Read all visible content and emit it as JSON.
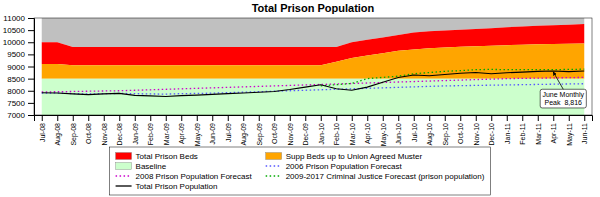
{
  "chart_data": {
    "type": "area",
    "title": "Total Prison Population",
    "categories": [
      "Jul-08",
      "Aug-08",
      "Sep-08",
      "Oct-08",
      "Nov-08",
      "Dec-08",
      "Jan-09",
      "Feb-09",
      "Mar-09",
      "Apr-09",
      "May-09",
      "Jun-09",
      "Jul-09",
      "Aug-09",
      "Sep-09",
      "Oct-09",
      "Nov-09",
      "Dec-09",
      "Jan-10",
      "Feb-10",
      "Mar-10",
      "Apr-10",
      "May-10",
      "Jun-10",
      "Jul-10",
      "Aug-10",
      "Sep-10",
      "Oct-10",
      "Nov-10",
      "Dec-10",
      "Jan-11",
      "Feb-11",
      "Mar-11",
      "Apr-11",
      "May-11",
      "Jun-11"
    ],
    "series": [
      {
        "type": "area",
        "color": "#C0C0C0",
        "values": [
          11000,
          11000,
          11000,
          11000,
          11000,
          11000,
          11000,
          11000,
          11000,
          11000,
          11000,
          11000,
          11000,
          11000,
          11000,
          11000,
          11000,
          11000,
          11000,
          11000,
          11000,
          11000,
          11000,
          11000,
          11000,
          11000,
          11000,
          11000,
          11000,
          11000,
          11000,
          11000,
          11000,
          11000,
          11000,
          11000
        ]
      },
      {
        "name": "Total Prison Beds",
        "type": "area",
        "color": "#FF0000",
        "values": [
          10000,
          10000,
          9800,
          9800,
          9800,
          9800,
          9800,
          9800,
          9800,
          9800,
          9800,
          9800,
          9800,
          9800,
          9800,
          9800,
          9800,
          9800,
          9800,
          9800,
          10000,
          10100,
          10200,
          10300,
          10400,
          10450,
          10480,
          10520,
          10550,
          10580,
          10620,
          10650,
          10680,
          10700,
          10720,
          10750
        ]
      },
      {
        "name": "Supp Beds up to Union Agreed Muster",
        "type": "area",
        "color": "#FFA500",
        "values": [
          9100,
          9100,
          9050,
          9050,
          9050,
          9050,
          9050,
          9050,
          9050,
          9050,
          9050,
          9050,
          9050,
          9050,
          9050,
          9050,
          9050,
          9050,
          9050,
          9200,
          9350,
          9450,
          9550,
          9650,
          9700,
          9750,
          9780,
          9810,
          9840,
          9860,
          9880,
          9900,
          9920,
          9930,
          9940,
          9950
        ]
      },
      {
        "name": "Baseline",
        "type": "area",
        "color": "#CCFFCC",
        "values": [
          8500,
          8500,
          8500,
          8500,
          8500,
          8500,
          8500,
          8500,
          8500,
          8500,
          8500,
          8500,
          8500,
          8500,
          8500,
          8500,
          8500,
          8500,
          8500,
          8500,
          8500,
          8500,
          8500,
          8500,
          8500,
          8500,
          8500,
          8500,
          8500,
          8500,
          8500,
          8500,
          8500,
          8500,
          8500,
          8500
        ]
      },
      {
        "name": "2006 Prison Population Forecast",
        "type": "line",
        "line_style": "dotted",
        "color": "#5555FF",
        "values": [
          7900,
          7910,
          7880,
          7870,
          7880,
          7890,
          7880,
          7870,
          7860,
          7880,
          7890,
          7900,
          7920,
          7940,
          7960,
          7980,
          8000,
          8020,
          8040,
          8060,
          8080,
          8100,
          8120,
          8140,
          8160,
          8180,
          8200,
          8210,
          8220,
          8230,
          8240,
          8250,
          8260,
          8270,
          8280,
          8290
        ]
      },
      {
        "name": "2008 Prison Population Forecast",
        "type": "line",
        "line_style": "dotted",
        "color": "#CC00CC",
        "values": [
          7950,
          7960,
          7970,
          7980,
          7990,
          8000,
          8020,
          8040,
          8060,
          8080,
          8100,
          8120,
          8140,
          8160,
          8180,
          8200,
          8220,
          8240,
          8260,
          8280,
          8300,
          8320,
          8340,
          8360,
          8380,
          8400,
          8420,
          8440,
          8460,
          8480,
          8500,
          8510,
          8520,
          8530,
          8540,
          8550
        ]
      },
      {
        "name": "2009-2017 Criminal Justice Forecast (prison population)",
        "type": "line",
        "line_style": "dotted",
        "color": "#00AA00",
        "values": [
          null,
          null,
          null,
          null,
          null,
          null,
          null,
          null,
          null,
          null,
          null,
          null,
          null,
          null,
          null,
          null,
          null,
          null,
          8200,
          8250,
          8300,
          8500,
          8550,
          8600,
          8700,
          8750,
          8800,
          8830,
          8870,
          8880,
          8870,
          8870,
          8870,
          8870,
          8880,
          8890
        ]
      },
      {
        "name": "Total Prison Population",
        "type": "line",
        "line_style": "solid",
        "color": "#000000",
        "values": [
          7920,
          7910,
          7870,
          7840,
          7870,
          7890,
          7810,
          7790,
          7760,
          7800,
          7820,
          7850,
          7880,
          7910,
          7940,
          7970,
          8050,
          8150,
          8250,
          8080,
          8020,
          8150,
          8350,
          8550,
          8650,
          8620,
          8670,
          8720,
          8750,
          8700,
          8740,
          8770,
          8800,
          8816,
          8790,
          8816
        ]
      }
    ],
    "ylim": [
      7000,
      11000
    ],
    "yticks": [
      7000,
      7500,
      8000,
      8500,
      9000,
      9500,
      10000,
      10500,
      11000
    ],
    "annotations": [
      {
        "text": "June Monthly\nPeak  8,816",
        "x": "Apr-11",
        "y": 8816
      }
    ],
    "grid": false,
    "legend": "bottom"
  }
}
